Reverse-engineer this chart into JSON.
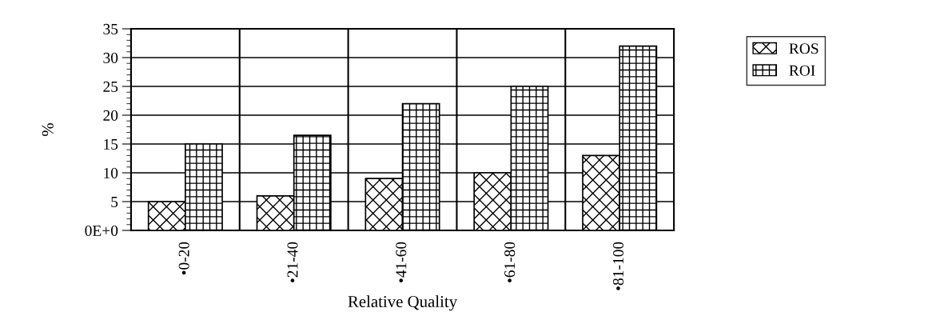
{
  "chart_data": {
    "type": "bar",
    "xlabel": "Relative Quality",
    "ylabel": "%",
    "categories": [
      "•0-20",
      "•21-40",
      "•41-60",
      "•61-80",
      "•81-100"
    ],
    "series": [
      {
        "name": "ROS",
        "color": "#000000",
        "values": [
          5,
          6,
          9,
          10,
          13
        ]
      },
      {
        "name": "ROI",
        "color": "#000000",
        "values": [
          15,
          16.5,
          22,
          25,
          32
        ]
      }
    ],
    "ylim": [
      0,
      35
    ],
    "yticks": [
      {
        "value": 0,
        "label": "0E+0"
      },
      5,
      10,
      15,
      20,
      25,
      30,
      35
    ],
    "grid": true,
    "legend": "top right"
  }
}
